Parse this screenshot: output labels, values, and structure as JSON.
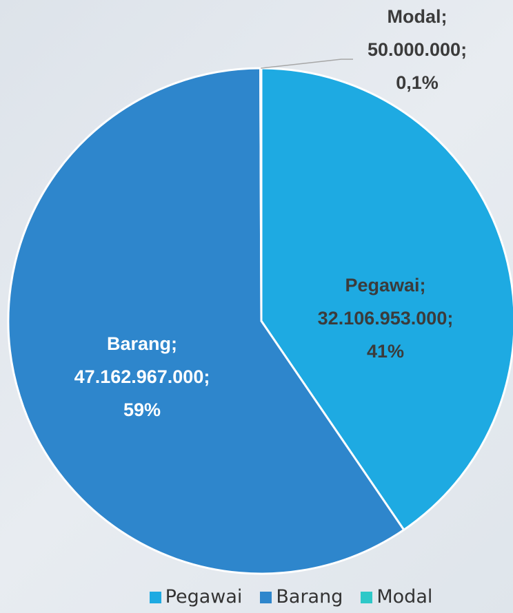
{
  "chart_data": {
    "type": "pie",
    "title": "",
    "slices": [
      {
        "name": "Pegawai",
        "value": 32106953000,
        "value_label": "32.106.953.000;",
        "percent_label": "41%",
        "name_label": "Pegawai;",
        "color": "#1eaae2",
        "label_color": "#3b3b3b"
      },
      {
        "name": "Barang",
        "value": 47162967000,
        "value_label": "47.162.967.000;",
        "percent_label": "59%",
        "name_label": "Barang;",
        "color": "#2e86cc",
        "label_color": "#ffffff"
      },
      {
        "name": "Modal",
        "value": 50000000,
        "value_label": "50.000.000;",
        "percent_label": "0,1%",
        "name_label": "Modal;",
        "color": "#2ec8c8",
        "label_color": "#3b3b3b"
      }
    ],
    "legend_position": "bottom-right",
    "start_angle_deg": 0,
    "direction": "clockwise"
  },
  "legend": {
    "items": [
      {
        "label": "Pegawai",
        "color": "#1eaae2"
      },
      {
        "label": "Barang",
        "color": "#2e86cc"
      },
      {
        "label": "Modal",
        "color": "#2ec8c8"
      }
    ]
  }
}
